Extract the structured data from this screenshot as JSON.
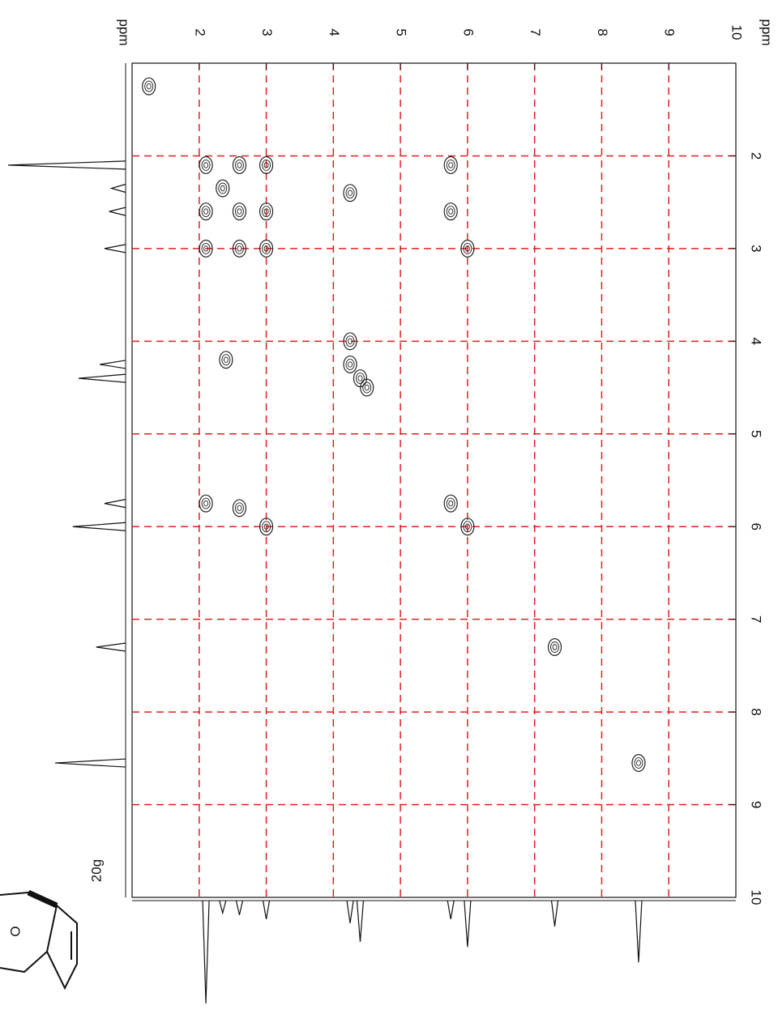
{
  "chart_data": {
    "type": "cosy",
    "x_unit": "ppm",
    "y_unit": "ppm",
    "xlim": [
      1,
      10
    ],
    "ylim": [
      1,
      10
    ],
    "xticks": [
      2,
      3,
      4,
      5,
      6,
      7,
      8,
      9,
      10
    ],
    "yticks": [
      2,
      3,
      4,
      5,
      6,
      7,
      8,
      9,
      10
    ],
    "grid": true,
    "grid_color": "#e02020",
    "color": "#222222",
    "x": [
      1.25,
      2.1,
      2.35,
      2.6,
      3.0,
      4.25,
      4.4,
      4.5,
      5.75,
      6.0,
      7.3,
      8.55,
      2.1,
      2.1,
      2.1,
      2.6,
      2.6,
      2.6,
      3.0,
      3.0,
      3.0,
      2.4,
      4.25,
      5.75,
      5.75,
      6.0,
      4.25
    ],
    "y": [
      1.25,
      2.1,
      2.35,
      2.6,
      3.0,
      4.25,
      4.4,
      4.5,
      5.75,
      6.0,
      7.3,
      8.55,
      2.6,
      3.0,
      5.75,
      2.1,
      3.0,
      5.8,
      2.1,
      2.6,
      6.0,
      4.2,
      2.4,
      2.1,
      2.6,
      3.0,
      4.0
    ],
    "projection_shifts": [
      2.1,
      2.35,
      2.6,
      3.0,
      4.25,
      4.4,
      5.75,
      6.0,
      7.3,
      8.55
    ],
    "projection_heights": [
      100,
      12,
      14,
      18,
      22,
      40,
      18,
      45,
      25,
      60
    ],
    "structure": {
      "label": "20g",
      "atom": "O"
    }
  }
}
